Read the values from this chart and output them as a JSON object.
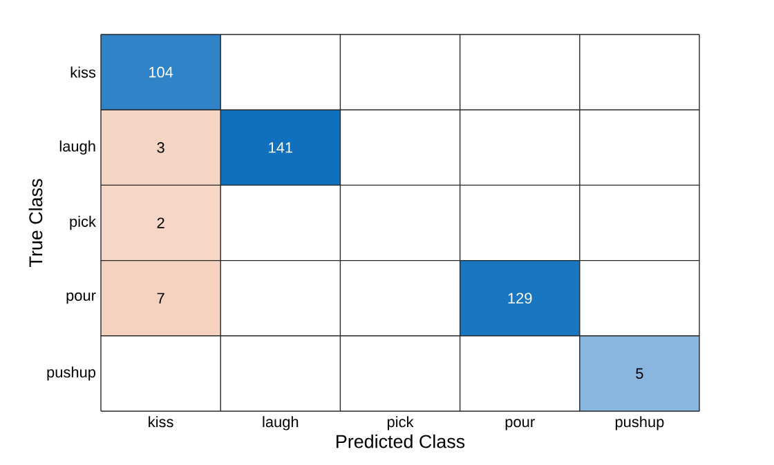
{
  "chart_data": {
    "type": "heatmap",
    "xlabel": "Predicted Class",
    "ylabel": "True Class",
    "categories": [
      "kiss",
      "laugh",
      "pick",
      "pour",
      "pushup"
    ],
    "y_categories": [
      "kiss",
      "laugh",
      "pick",
      "pour",
      "pushup"
    ],
    "cells": [
      [
        104,
        null,
        null,
        null,
        null
      ],
      [
        3,
        141,
        null,
        null,
        null
      ],
      [
        2,
        null,
        null,
        null,
        null
      ],
      [
        7,
        null,
        null,
        129,
        null
      ],
      [
        null,
        null,
        null,
        null,
        5
      ]
    ],
    "cell_labels": [
      [
        "104",
        null,
        null,
        null,
        null
      ],
      [
        "3",
        "141",
        null,
        null,
        null
      ],
      [
        "2",
        null,
        null,
        null,
        null
      ],
      [
        "7",
        null,
        null,
        "129",
        null
      ],
      [
        null,
        null,
        null,
        null,
        "5"
      ]
    ]
  }
}
